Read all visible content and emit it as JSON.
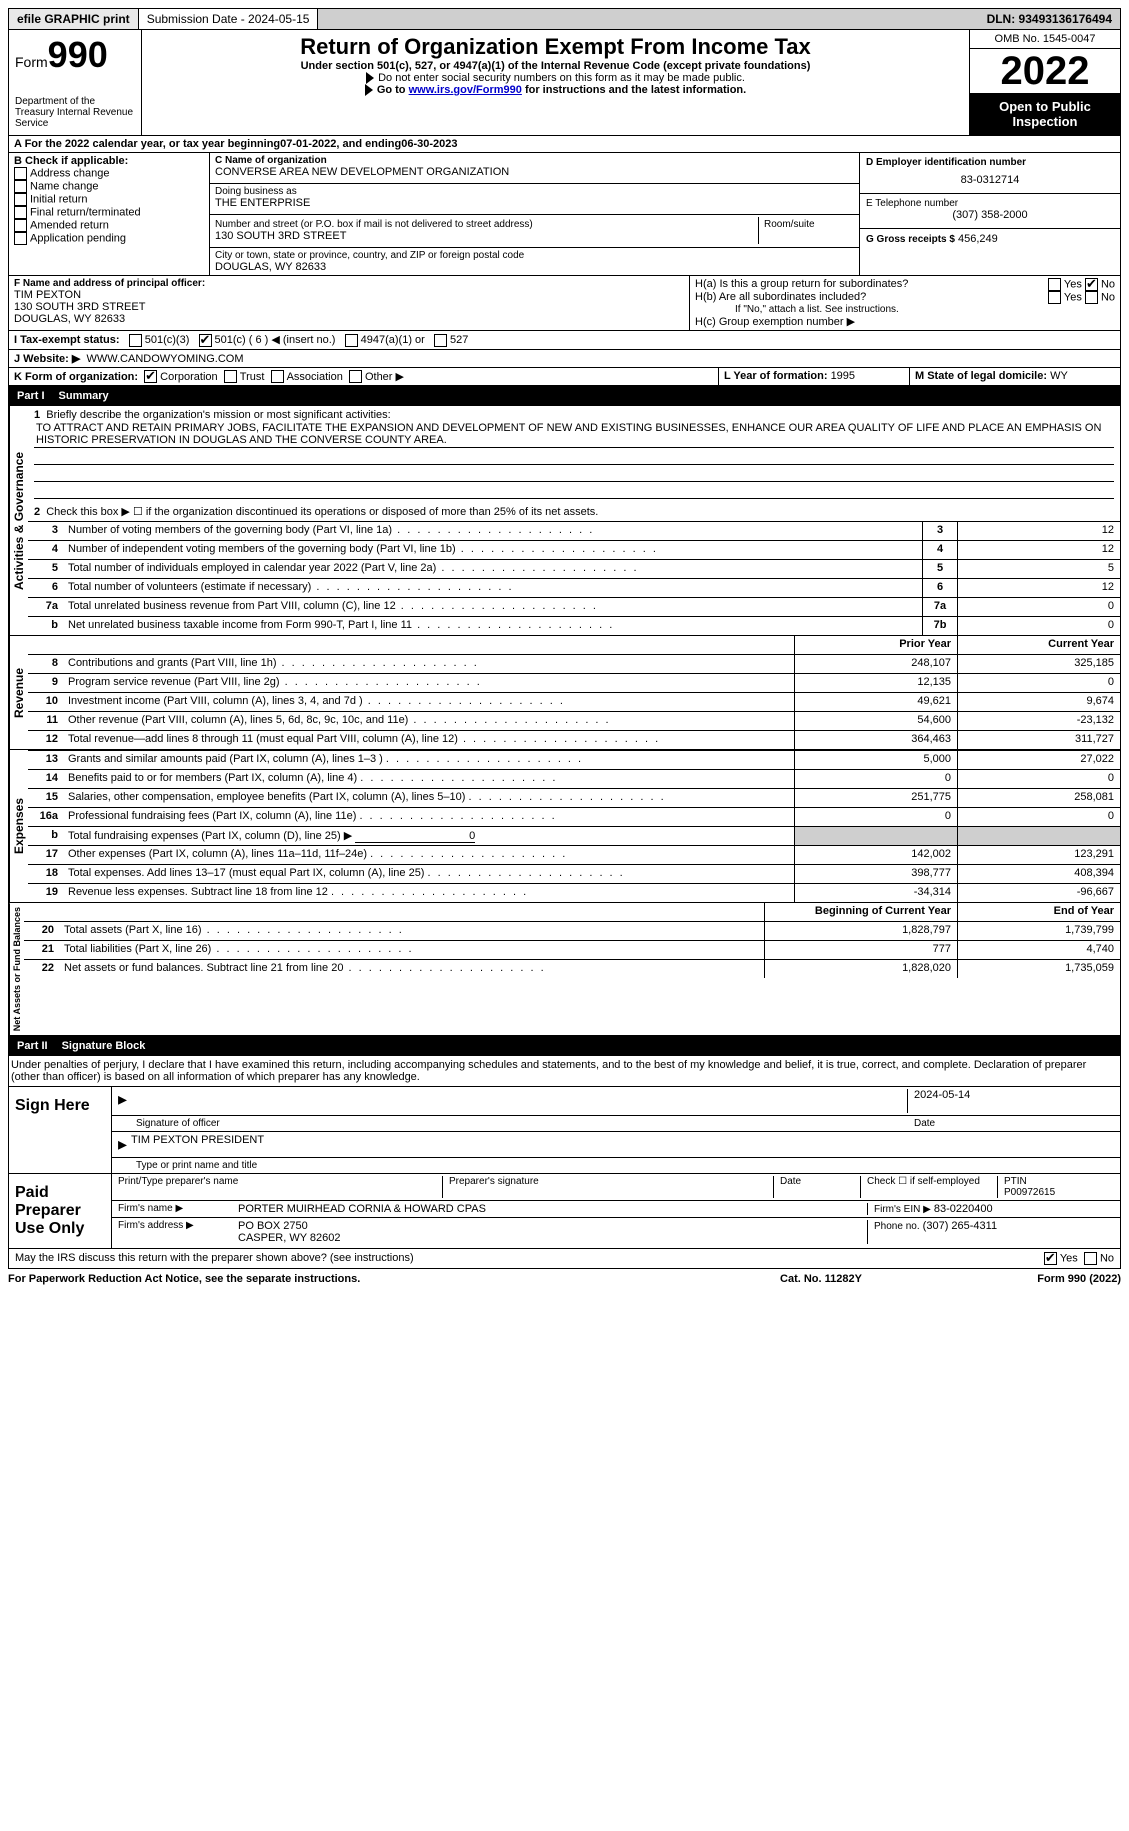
{
  "topbar": {
    "efile": "efile GRAPHIC print",
    "subdate_label": "Submission Date - 2024-05-15",
    "dln": "DLN: 93493136176494"
  },
  "header": {
    "form_label": "Form",
    "form_num": "990",
    "dept": "Department of the Treasury Internal Revenue Service",
    "title": "Return of Organization Exempt From Income Tax",
    "subtitle": "Under section 501(c), 527, or 4947(a)(1) of the Internal Revenue Code (except private foundations)",
    "instr1": "Do not enter social security numbers on this form as it may be made public.",
    "instr2_pre": "Go to ",
    "instr2_link": "www.irs.gov/Form990",
    "instr2_post": " for instructions and the latest information.",
    "omb": "OMB No. 1545-0047",
    "year": "2022",
    "open": "Open to Public Inspection"
  },
  "period": {
    "label_a": "A For the 2022 calendar year, or tax year beginning ",
    "begin": "07-01-2022",
    "mid": " , and ending ",
    "end": "06-30-2023"
  },
  "boxB": {
    "label": "B Check if applicable:",
    "opts": [
      "Address change",
      "Name change",
      "Initial return",
      "Final return/terminated",
      "Amended return",
      "Application pending"
    ]
  },
  "boxC": {
    "label": "C Name of organization",
    "name": "CONVERSE AREA NEW DEVELOPMENT ORGANIZATION",
    "dba_label": "Doing business as",
    "dba": "THE ENTERPRISE",
    "street_label": "Number and street (or P.O. box if mail is not delivered to street address)",
    "room_label": "Room/suite",
    "street": "130 SOUTH 3RD STREET",
    "city_label": "City or town, state or province, country, and ZIP or foreign postal code",
    "city": "DOUGLAS, WY  82633"
  },
  "boxD": {
    "label": "D Employer identification number",
    "val": "83-0312714"
  },
  "boxE": {
    "label": "E Telephone number",
    "val": "(307) 358-2000"
  },
  "boxG": {
    "label": "G Gross receipts $",
    "val": "456,249"
  },
  "boxF": {
    "label": "F  Name and address of principal officer:",
    "name": "TIM PEXTON",
    "addr1": "130 SOUTH 3RD STREET",
    "addr2": "DOUGLAS, WY  82633"
  },
  "boxH": {
    "a_label": "H(a)  Is this a group return for subordinates?",
    "b_label": "H(b)  Are all subordinates included?",
    "b_note": "If \"No,\" attach a list. See instructions.",
    "c_label": "H(c)  Group exemption number ▶",
    "yes": "Yes",
    "no": "No"
  },
  "taxexempt": {
    "label": "I    Tax-exempt status:",
    "opts": [
      "501(c)(3)",
      "501(c) ( 6 ) ◀ (insert no.)",
      "4947(a)(1) or",
      "527"
    ]
  },
  "website": {
    "label": "J   Website: ▶",
    "val": "WWW.CANDOWYOMING.COM"
  },
  "boxK": {
    "label": "K Form of organization:",
    "opts": [
      "Corporation",
      "Trust",
      "Association",
      "Other ▶"
    ]
  },
  "boxL": {
    "label": "L Year of formation: ",
    "val": "1995"
  },
  "boxM": {
    "label": "M State of legal domicile: ",
    "val": "WY"
  },
  "part1": {
    "title": "Part I",
    "subtitle": "Summary",
    "q1": "Briefly describe the organization's mission or most significant activities:",
    "mission": "TO ATTRACT AND RETAIN PRIMARY JOBS, FACILITATE THE EXPANSION AND DEVELOPMENT OF NEW AND EXISTING BUSINESSES, ENHANCE OUR AREA QUALITY OF LIFE AND PLACE AN EMPHASIS ON HISTORIC PRESERVATION IN DOUGLAS AND THE CONVERSE COUNTY AREA.",
    "q2": "Check this box ▶ ☐ if the organization discontinued its operations or disposed of more than 25% of its net assets.",
    "side_ag": "Activities & Governance",
    "side_rev": "Revenue",
    "side_exp": "Expenses",
    "side_net": "Net Assets or Fund Balances",
    "prior": "Prior Year",
    "current": "Current Year",
    "begin": "Beginning of Current Year",
    "endyr": "End of Year",
    "lines_gov": [
      {
        "n": "3",
        "d": "Number of voting members of the governing body (Part VI, line 1a)",
        "box": "3",
        "v": "12"
      },
      {
        "n": "4",
        "d": "Number of independent voting members of the governing body (Part VI, line 1b)",
        "box": "4",
        "v": "12"
      },
      {
        "n": "5",
        "d": "Total number of individuals employed in calendar year 2022 (Part V, line 2a)",
        "box": "5",
        "v": "5"
      },
      {
        "n": "6",
        "d": "Total number of volunteers (estimate if necessary)",
        "box": "6",
        "v": "12"
      },
      {
        "n": "7a",
        "d": "Total unrelated business revenue from Part VIII, column (C), line 12",
        "box": "7a",
        "v": "0"
      },
      {
        "n": "b",
        "d": "Net unrelated business taxable income from Form 990-T, Part I, line 11",
        "box": "7b",
        "v": "0"
      }
    ],
    "lines_rev": [
      {
        "n": "8",
        "d": "Contributions and grants (Part VIII, line 1h)",
        "py": "248,107",
        "cy": "325,185"
      },
      {
        "n": "9",
        "d": "Program service revenue (Part VIII, line 2g)",
        "py": "12,135",
        "cy": "0"
      },
      {
        "n": "10",
        "d": "Investment income (Part VIII, column (A), lines 3, 4, and 7d )",
        "py": "49,621",
        "cy": "9,674"
      },
      {
        "n": "11",
        "d": "Other revenue (Part VIII, column (A), lines 5, 6d, 8c, 9c, 10c, and 11e)",
        "py": "54,600",
        "cy": "-23,132"
      },
      {
        "n": "12",
        "d": "Total revenue—add lines 8 through 11 (must equal Part VIII, column (A), line 12)",
        "py": "364,463",
        "cy": "311,727"
      }
    ],
    "lines_exp": [
      {
        "n": "13",
        "d": "Grants and similar amounts paid (Part IX, column (A), lines 1–3 )",
        "py": "5,000",
        "cy": "27,022"
      },
      {
        "n": "14",
        "d": "Benefits paid to or for members (Part IX, column (A), line 4)",
        "py": "0",
        "cy": "0"
      },
      {
        "n": "15",
        "d": "Salaries, other compensation, employee benefits (Part IX, column (A), lines 5–10)",
        "py": "251,775",
        "cy": "258,081"
      },
      {
        "n": "16a",
        "d": "Professional fundraising fees (Part IX, column (A), line 11e)",
        "py": "0",
        "cy": "0"
      },
      {
        "n": "b",
        "d": "Total fundraising expenses (Part IX, column (D), line 25) ▶",
        "py": "shade",
        "cy": "shade",
        "extra": "0"
      },
      {
        "n": "17",
        "d": "Other expenses (Part IX, column (A), lines 11a–11d, 11f–24e)",
        "py": "142,002",
        "cy": "123,291"
      },
      {
        "n": "18",
        "d": "Total expenses. Add lines 13–17 (must equal Part IX, column (A), line 25)",
        "py": "398,777",
        "cy": "408,394"
      },
      {
        "n": "19",
        "d": "Revenue less expenses. Subtract line 18 from line 12",
        "py": "-34,314",
        "cy": "-96,667"
      }
    ],
    "lines_net": [
      {
        "n": "20",
        "d": "Total assets (Part X, line 16)",
        "py": "1,828,797",
        "cy": "1,739,799"
      },
      {
        "n": "21",
        "d": "Total liabilities (Part X, line 26)",
        "py": "777",
        "cy": "4,740"
      },
      {
        "n": "22",
        "d": "Net assets or fund balances. Subtract line 21 from line 20",
        "py": "1,828,020",
        "cy": "1,735,059"
      }
    ]
  },
  "part2": {
    "title": "Part II",
    "subtitle": "Signature Block",
    "decl": "Under penalties of perjury, I declare that I have examined this return, including accompanying schedules and statements, and to the best of my knowledge and belief, it is true, correct, and complete. Declaration of preparer (other than officer) is based on all information of which preparer has any knowledge.",
    "sign_here": "Sign Here",
    "sig_officer": "Signature of officer",
    "sig_date": "2024-05-14",
    "date_label": "Date",
    "officer_name": "TIM PEXTON  PRESIDENT",
    "officer_type": "Type or print name and title",
    "paid": "Paid Preparer Use Only",
    "prep_name_label": "Print/Type preparer's name",
    "prep_sig_label": "Preparer's signature",
    "check_self": "Check ☐ if self-employed",
    "ptin_label": "PTIN",
    "ptin": "P00972615",
    "firm_name_label": "Firm's name   ▶",
    "firm_name": "PORTER MUIRHEAD CORNIA & HOWARD CPAS",
    "firm_ein_label": "Firm's EIN ▶",
    "firm_ein": "83-0220400",
    "firm_addr_label": "Firm's address ▶",
    "firm_addr1": "PO BOX 2750",
    "firm_addr2": "CASPER, WY  82602",
    "phone_label": "Phone no.",
    "phone": "(307) 265-4311",
    "discuss": "May the IRS discuss this return with the preparer shown above? (see instructions)"
  },
  "footer": {
    "left": "For Paperwork Reduction Act Notice, see the separate instructions.",
    "mid": "Cat. No. 11282Y",
    "right": "Form 990 (2022)"
  }
}
